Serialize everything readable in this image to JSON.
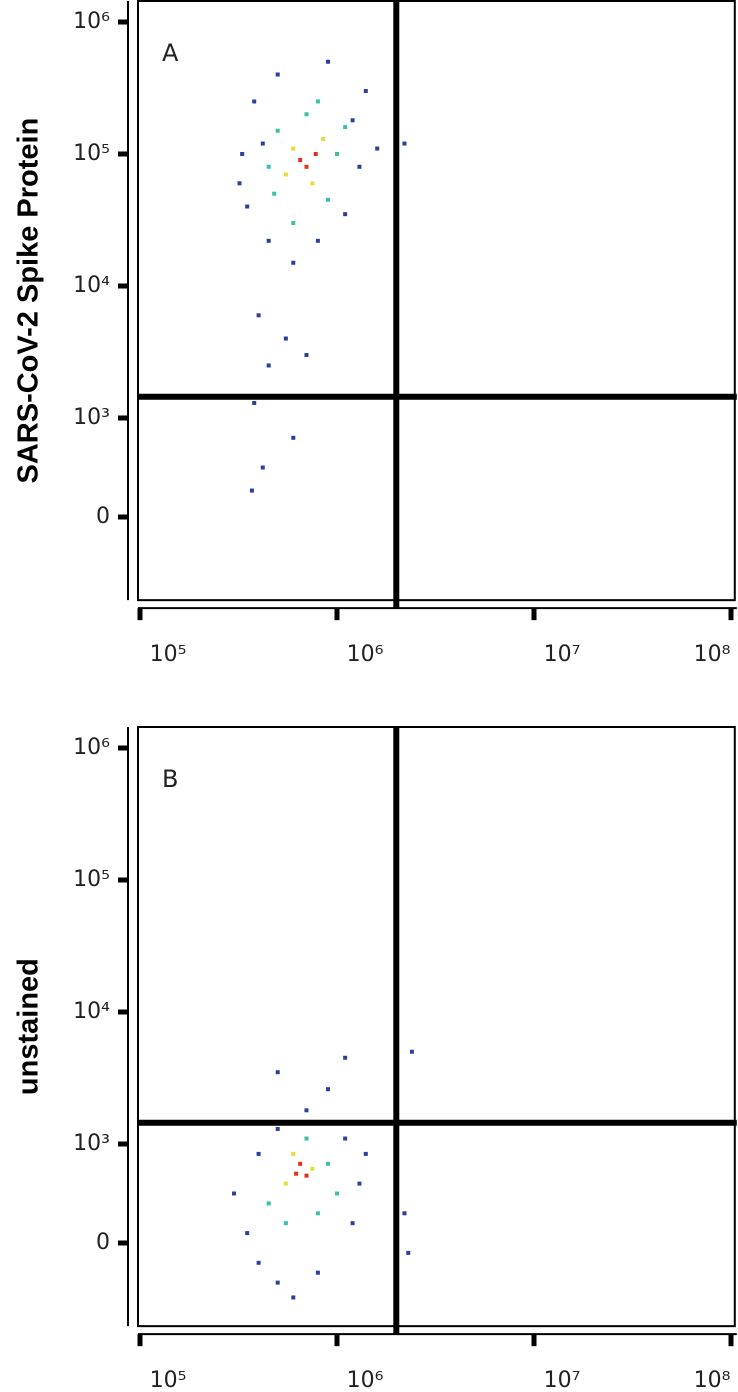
{
  "chart_data": [
    {
      "type": "scatter",
      "annotation": "A",
      "ylabel": "SARS-CoV-2 Spike Protein",
      "xscale": "log",
      "yscale": "biexponential",
      "xlim": [
        100000,
        107000000
      ],
      "ylim": [
        -840,
        1500000
      ],
      "xticks": [
        {
          "value": 100000,
          "label": "10⁵"
        },
        {
          "value": 1000000,
          "label": "10⁶"
        },
        {
          "value": 10000000,
          "label": "10⁷"
        },
        {
          "value": 100000000,
          "label": "10⁸"
        }
      ],
      "yticks": [
        0,
        {
          "value": 1000,
          "label": "10³"
        },
        {
          "value": 10000,
          "label": "10⁴"
        },
        {
          "value": 100000,
          "label": "10⁵"
        },
        {
          "value": 1000000,
          "label": "10⁶"
        }
      ],
      "gate": {
        "x": 2000000,
        "y": 1450
      },
      "series": [
        {
          "color": "#2a3f9e",
          "x": [
            320000,
            380000,
            420000,
            350000,
            1200000,
            1400000,
            500000,
            900000,
            450000,
            600000,
            400000,
            550000,
            450000,
            700000,
            380000,
            600000,
            420000,
            370000,
            1600000,
            2200000,
            1100000,
            330000,
            800000,
            1300000
          ],
          "y": [
            60000,
            250000,
            120000,
            40000,
            180000,
            300000,
            400000,
            500000,
            22000,
            15000,
            6000,
            4000,
            2500,
            3000,
            1300,
            800,
            500,
            267,
            110000,
            120000,
            35000,
            100000,
            22000,
            80000
          ]
        },
        {
          "color": "#3cc0a8",
          "x": [
            500000,
            480000,
            800000,
            1000000,
            600000,
            900000,
            450000,
            1100000,
            700000
          ],
          "y": [
            150000,
            50000,
            250000,
            100000,
            30000,
            45000,
            80000,
            160000,
            200000
          ]
        },
        {
          "color": "#e6dc3a",
          "x": [
            600000,
            750000,
            850000,
            550000
          ],
          "y": [
            110000,
            60000,
            130000,
            70000
          ]
        },
        {
          "color": "#e0301e",
          "x": [
            700000,
            780000,
            650000
          ],
          "y": [
            80000,
            100000,
            90000
          ]
        }
      ]
    },
    {
      "type": "scatter",
      "annotation": "B",
      "ylabel": "unstained",
      "xscale": "log",
      "yscale": "biexponential",
      "xlim": [
        100000,
        107000000
      ],
      "ylim": [
        -840,
        1500000
      ],
      "xticks": [
        {
          "value": 100000,
          "label": "10⁵"
        },
        {
          "value": 1000000,
          "label": "10⁶"
        },
        {
          "value": 10000000,
          "label": "10⁷"
        },
        {
          "value": 100000000,
          "label": "10⁸"
        }
      ],
      "yticks": [
        0,
        {
          "value": 1000,
          "label": "10³"
        },
        {
          "value": 10000,
          "label": "10⁴"
        },
        {
          "value": 100000,
          "label": "10⁵"
        },
        {
          "value": 1000000,
          "label": "10⁶"
        }
      ],
      "gate": {
        "x": 2000000,
        "y": 1450
      },
      "series": [
        {
          "color": "#2a3f9e",
          "x": [
            300000,
            350000,
            400000,
            500000,
            800000,
            1200000,
            1300000,
            1100000,
            500000,
            700000,
            900000,
            1100000,
            500000,
            2200000,
            2300000,
            400000,
            1400000,
            2400000,
            600000
          ],
          "y": [
            500,
            100,
            -200,
            -400,
            -300,
            200,
            600,
            1100,
            1300,
            1800,
            2600,
            4500,
            3500,
            300,
            -100,
            900,
            900,
            5000,
            -550
          ]
        },
        {
          "color": "#3cc0a8",
          "x": [
            450000,
            800000,
            900000,
            550000,
            700000,
            1000000
          ],
          "y": [
            400,
            300,
            800,
            200,
            1100,
            500
          ]
        },
        {
          "color": "#e6dc3a",
          "x": [
            550000,
            750000,
            600000
          ],
          "y": [
            600,
            750,
            900
          ]
        },
        {
          "color": "#e0301e",
          "x": [
            620000,
            700000,
            650000
          ],
          "y": [
            700,
            680,
            800
          ]
        }
      ]
    }
  ]
}
